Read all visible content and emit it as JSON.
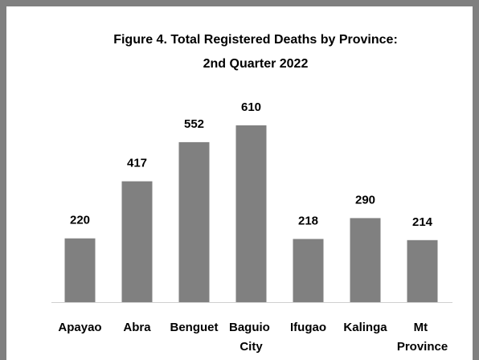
{
  "chart_data": {
    "type": "bar",
    "title": "Figure 4. Total Registered Deaths by Province:",
    "subtitle": "2nd Quarter 2022",
    "categories": [
      "Apayao",
      "Abra",
      "Benguet",
      "Baguio City",
      "Ifugao",
      "Kalinga",
      "Mt Province"
    ],
    "values": [
      220,
      417,
      552,
      610,
      218,
      290,
      214
    ],
    "color": "#808080"
  }
}
